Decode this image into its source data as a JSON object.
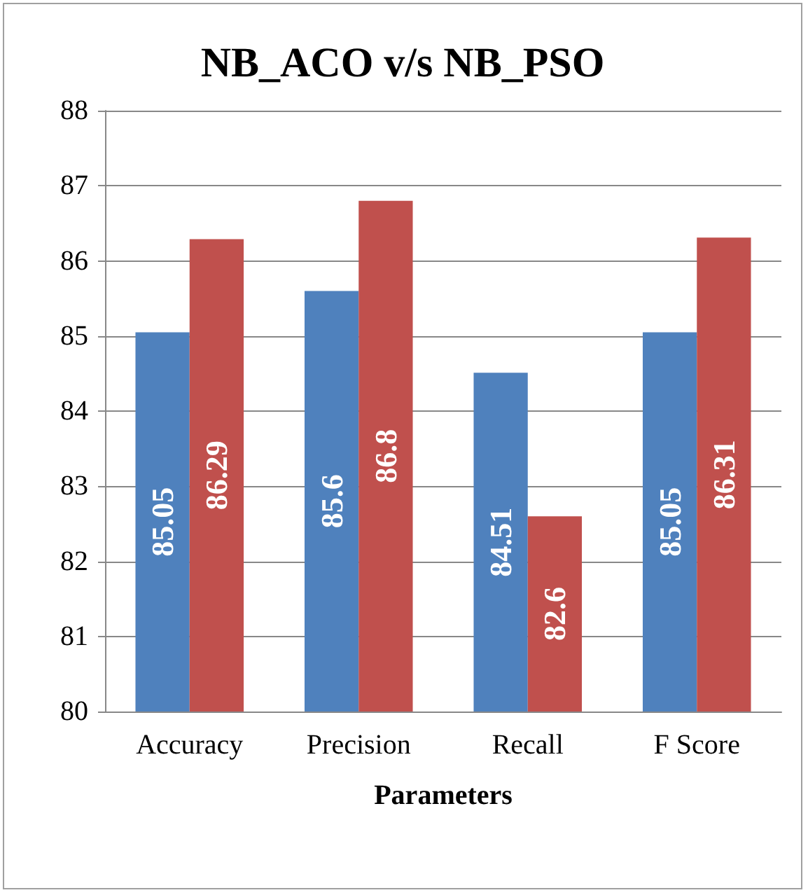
{
  "chart_data": {
    "type": "bar",
    "title": "NB_ACO v/s NB_PSO",
    "xlabel": "Parameters",
    "categories": [
      "Accuracy",
      "Precision",
      "Recall",
      "F Score"
    ],
    "series": [
      {
        "color": "#4f81bd",
        "values": [
          85.05,
          85.6,
          84.51,
          85.05
        ]
      },
      {
        "color": "#c0504d",
        "values": [
          86.29,
          86.8,
          82.6,
          86.31
        ]
      }
    ],
    "ylim": [
      80,
      88
    ],
    "yticks": [
      80,
      81,
      82,
      83,
      84,
      85,
      86,
      87,
      88
    ],
    "grid": "y",
    "data_labels": true
  }
}
